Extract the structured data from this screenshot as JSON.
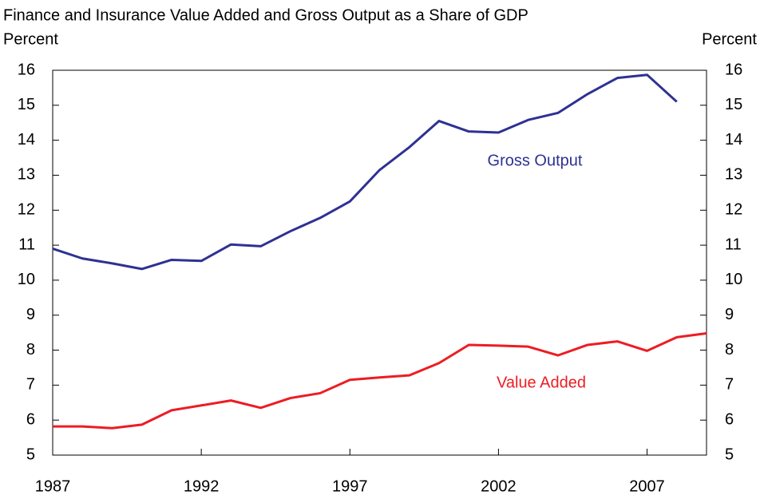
{
  "chart_data": {
    "type": "line",
    "title": "Finance and Insurance Value Added and Gross Output as a Share of GDP",
    "ylabel": "Percent",
    "y2label": "Percent",
    "x": [
      1987,
      1988,
      1989,
      1990,
      1991,
      1992,
      1993,
      1994,
      1995,
      1996,
      1997,
      1998,
      1999,
      2000,
      2001,
      2002,
      2003,
      2004,
      2005,
      2006,
      2007,
      2008,
      2009
    ],
    "xlim": [
      1987,
      2009
    ],
    "xticks": [
      1987,
      1992,
      1997,
      2002,
      2007
    ],
    "ylim": [
      5,
      16
    ],
    "yticks": [
      5,
      6,
      7,
      8,
      9,
      10,
      11,
      12,
      13,
      14,
      15,
      16
    ],
    "y2lim": [
      5,
      16
    ],
    "y2ticks": [
      5,
      6,
      7,
      8,
      9,
      10,
      11,
      12,
      13,
      14,
      15,
      16
    ],
    "series": [
      {
        "name": "Gross Output",
        "color": "#2e3192",
        "values": [
          10.9,
          10.62,
          10.48,
          10.32,
          10.58,
          10.55,
          11.02,
          10.97,
          11.4,
          11.78,
          12.25,
          13.15,
          13.8,
          14.55,
          14.25,
          14.22,
          14.58,
          14.78,
          15.32,
          15.78,
          15.87,
          15.1,
          null
        ]
      },
      {
        "name": "Value Added",
        "color": "#ed1c24",
        "values": [
          5.82,
          5.82,
          5.77,
          5.87,
          6.28,
          6.42,
          6.56,
          6.35,
          6.63,
          6.77,
          7.15,
          7.22,
          7.28,
          7.63,
          8.15,
          8.13,
          8.1,
          7.85,
          8.15,
          8.25,
          7.98,
          8.37,
          8.48
        ]
      }
    ]
  }
}
